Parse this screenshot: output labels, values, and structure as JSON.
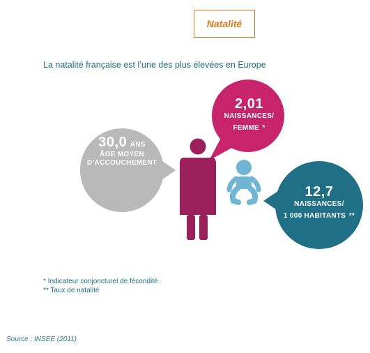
{
  "badge": {
    "label": "Natalité"
  },
  "subtitle": "La natalité française est l’une des plus élevées en Europe",
  "age_bubble": {
    "value": "30,0",
    "unit": "ANS",
    "line1": "ÂGE MOYEN",
    "line2": "D’ACCOUCHEMENT"
  },
  "fertility_bubble": {
    "value": "2,01",
    "line1": "NAISSANCES/",
    "line2": "FEMME",
    "marker": "*"
  },
  "birthrate_bubble": {
    "value": "12,7",
    "line1": "NAISSANCES/",
    "line2": "1 000 HABITANTS",
    "marker": "**"
  },
  "footnotes": {
    "note1": "* Indicateur conjoncturel de fécondité",
    "note2": "** Taux de natalité"
  },
  "source": "Source : INSEE (2011)",
  "colors": {
    "accent": "#e0771b",
    "grey": "#b9b9b9",
    "pink": "#c8246b",
    "woman": "#9b1f5a",
    "teal": "#1f6f86",
    "baby": "#6fb6d5"
  }
}
